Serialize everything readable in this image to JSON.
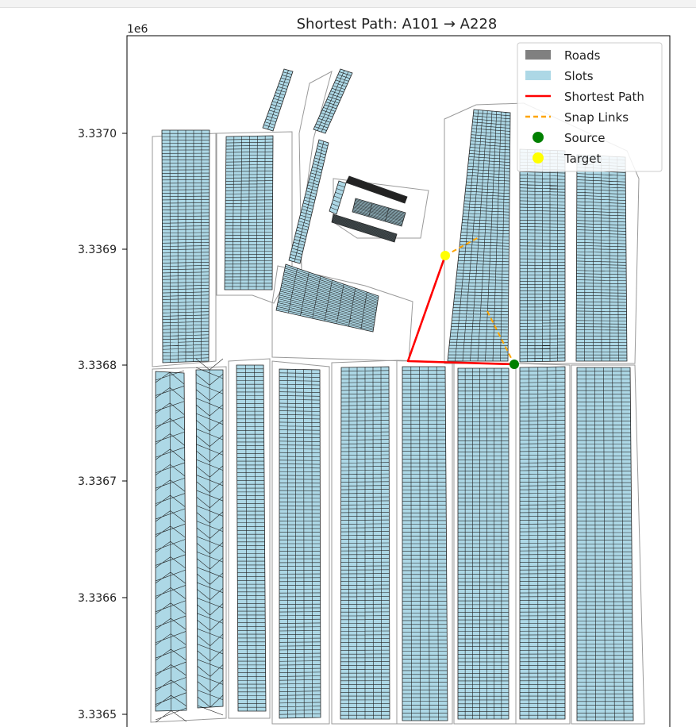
{
  "chart_data": {
    "type": "map",
    "title": "Shortest Path: A101 → A228",
    "y_offset_label": "1e6",
    "yticks": [
      "3.3365",
      "3.3366",
      "3.3367",
      "3.3368",
      "3.3369",
      "3.3370"
    ],
    "legend": {
      "position": "top-right",
      "entries": [
        {
          "label": "Roads",
          "kind": "patch",
          "color": "#808080"
        },
        {
          "label": "Slots",
          "kind": "patch",
          "color": "#add8e6"
        },
        {
          "label": "Shortest Path",
          "kind": "line",
          "color": "#ff0000"
        },
        {
          "label": "Snap Links",
          "kind": "dashed",
          "color": "#ffa500"
        },
        {
          "label": "Source",
          "kind": "marker",
          "color": "#008000"
        },
        {
          "label": "Target",
          "kind": "marker",
          "color": "#ffff00"
        }
      ]
    },
    "colors": {
      "slots": "#add8e6",
      "slot_lines": "#222222",
      "roads": "#9a9a9a",
      "path": "#ff0000",
      "snap": "#ffa500",
      "source": "#008000",
      "target": "#ffff00"
    },
    "source": "A101",
    "target": "A228"
  }
}
